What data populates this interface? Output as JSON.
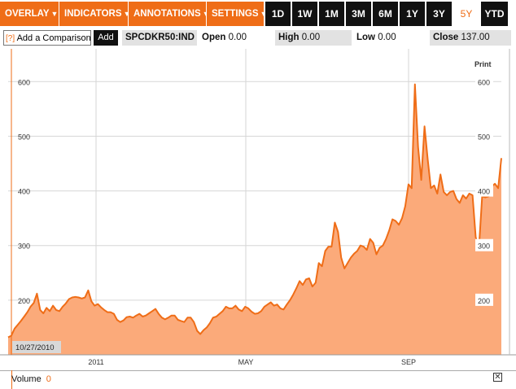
{
  "toolbar": {
    "menus": [
      {
        "label": "OVERLAY",
        "arrow": "▼"
      },
      {
        "label": "INDICATORS",
        "arrow": "▼"
      },
      {
        "label": "ANNOTATIONS",
        "arrow": "▼"
      },
      {
        "label": "SETTINGS",
        "arrow": "▼"
      }
    ],
    "ranges": [
      "1D",
      "1W",
      "1M",
      "3M",
      "6M",
      "1Y",
      "3Y",
      "5Y",
      "YTD"
    ],
    "active_range": "5Y"
  },
  "infobar": {
    "compare_hint": "[?]",
    "compare_label": "Add a Comparison",
    "add_label": "Add",
    "ticker": "SPCDKR50:IND",
    "open_label": "Open",
    "open_value": "0.00",
    "high_label": "High",
    "high_value": "0.00",
    "low_label": "Low",
    "low_value": "0.00",
    "close_label": "Close",
    "close_value": "137.00"
  },
  "chart": {
    "print_label": "Print",
    "start_date_label": "10/27/2010"
  },
  "chart_data": {
    "type": "area",
    "xlabel": "",
    "ylabel": "",
    "x_tick_labels": [
      "2011",
      "MAY",
      "SEP"
    ],
    "y_ticks": [
      200,
      300,
      400,
      500,
      600
    ],
    "ylim": [
      100,
      660
    ],
    "grid": true,
    "colors": {
      "line": "#ef6d17",
      "fill": "#fbaa7a"
    },
    "values": [
      132,
      135,
      148,
      155,
      162,
      170,
      178,
      188,
      195,
      212,
      182,
      176,
      186,
      180,
      190,
      182,
      180,
      188,
      194,
      202,
      205,
      206,
      205,
      203,
      205,
      218,
      198,
      190,
      193,
      187,
      182,
      178,
      178,
      175,
      164,
      160,
      163,
      169,
      170,
      168,
      172,
      175,
      170,
      172,
      176,
      180,
      184,
      175,
      168,
      165,
      168,
      172,
      172,
      164,
      162,
      160,
      168,
      168,
      160,
      144,
      138,
      145,
      150,
      158,
      168,
      170,
      175,
      180,
      188,
      185,
      185,
      190,
      183,
      180,
      188,
      185,
      179,
      175,
      176,
      180,
      188,
      192,
      196,
      190,
      192,
      185,
      183,
      192,
      200,
      210,
      222,
      235,
      228,
      238,
      240,
      225,
      232,
      268,
      262,
      290,
      298,
      298,
      342,
      325,
      278,
      258,
      268,
      278,
      285,
      290,
      300,
      298,
      292,
      312,
      305,
      284,
      296,
      300,
      312,
      328,
      348,
      345,
      338,
      350,
      372,
      412,
      405,
      595,
      480,
      420,
      518,
      458,
      405,
      410,
      395,
      430,
      398,
      392,
      398,
      400,
      385,
      378,
      392,
      386,
      395,
      392,
      315,
      296,
      390,
      388,
      390,
      408,
      413,
      405,
      460
    ]
  }
}
